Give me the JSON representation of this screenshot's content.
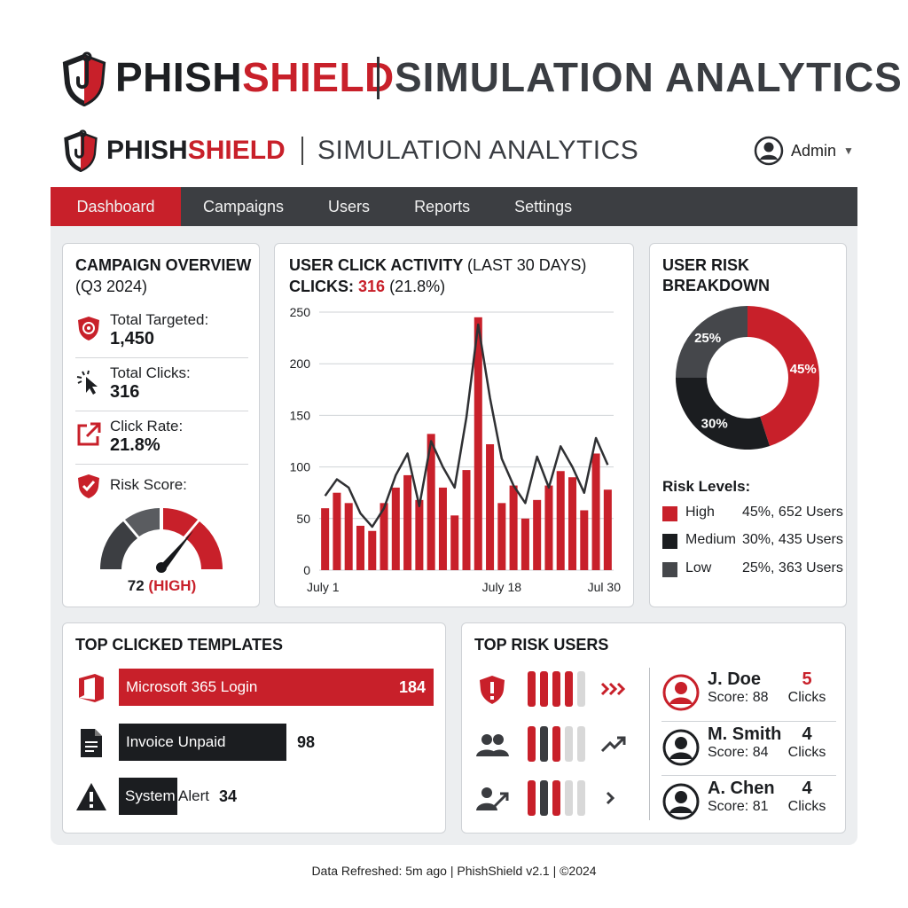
{
  "hero": {
    "brand_dark": "PHISH",
    "brand_red": "SHIELD",
    "title": "SIMULATION ANALYTICS"
  },
  "app_header": {
    "brand_dark": "PHISH",
    "brand_red": "SHIELD",
    "title": "SIMULATION ANALYTICS",
    "user_label": "Admin"
  },
  "nav": {
    "tabs": [
      {
        "label": "Dashboard",
        "active": true
      },
      {
        "label": "Campaigns",
        "active": false
      },
      {
        "label": "Users",
        "active": false
      },
      {
        "label": "Reports",
        "active": false
      },
      {
        "label": "Settings",
        "active": false
      }
    ]
  },
  "overview": {
    "title": "CAMPAIGN OVERVIEW",
    "subtitle": "(Q3 2024)",
    "metrics": [
      {
        "label": "Total Targeted:",
        "value": "1,450",
        "icon": "shield-target-icon"
      },
      {
        "label": "Total Clicks:",
        "value": "316",
        "icon": "cursor-click-icon"
      },
      {
        "label": "Click Rate:",
        "value": "21.8%",
        "icon": "external-link-icon"
      }
    ],
    "risk_label": "Risk Score:",
    "risk_value": "72",
    "risk_level": "(HIGH)",
    "risk_score": 72
  },
  "activity": {
    "title": "USER CLICK ACTIVITY",
    "title_suffix": "(LAST 30 DAYS)",
    "clicks_label": "CLICKS:",
    "clicks_value": "316",
    "clicks_pct": "(21.8%)"
  },
  "chart_data": {
    "type": "bar",
    "title": "USER CLICK ACTIVITY (LAST 30 DAYS)",
    "ylim": [
      0,
      250
    ],
    "yticks": [
      0,
      50,
      100,
      150,
      200,
      250
    ],
    "xtick_labels": [
      "July 1",
      "July 18",
      "Jul 30"
    ],
    "xtick_positions": [
      1,
      16,
      28
    ],
    "series": [
      {
        "values": [
          60,
          75,
          65,
          43,
          38,
          65,
          80,
          92,
          68,
          132,
          80,
          53,
          97,
          245,
          122,
          65,
          82,
          50,
          68,
          82,
          96,
          90,
          58,
          113,
          78
        ]
      },
      {
        "values": [
          72,
          88,
          80,
          55,
          42,
          60,
          92,
          113,
          62,
          125,
          100,
          80,
          148,
          238,
          167,
          108,
          82,
          65,
          110,
          80,
          120,
          100,
          75,
          128,
          102
        ]
      }
    ],
    "colors": {
      "bars": "#c8202a",
      "line": "#2f3033",
      "grid": "#cfd2d6"
    }
  },
  "risk_breakdown": {
    "title": "USER RISK BREAKDOWN",
    "legend_title": "Risk Levels:",
    "slices": [
      {
        "name": "High",
        "pct": 45,
        "label": "45%",
        "detail": "45%, 652 Users",
        "color": "#c8202a"
      },
      {
        "name": "Medium",
        "pct": 30,
        "label": "30%",
        "detail": "30%, 435 Users",
        "color": "#1b1d20"
      },
      {
        "name": "Low",
        "pct": 25,
        "label": "25%",
        "detail": "25%, 363 Users",
        "color": "#45474b"
      }
    ]
  },
  "templates": {
    "title": "TOP CLICKED TEMPLATES",
    "items": [
      {
        "name": "Microsoft 365 Login",
        "value": "184",
        "count": 184,
        "icon": "office-icon",
        "color": "#c8202a"
      },
      {
        "name": "Invoice Unpaid",
        "value": "98",
        "count": 98,
        "icon": "document-icon",
        "color": "#1b1d20"
      },
      {
        "name": "System",
        "name_rest": "Alert",
        "value": "34",
        "count": 34,
        "icon": "alert-triangle-icon",
        "color": "#1b1d20"
      }
    ]
  },
  "risk_users": {
    "title": "TOP RISK USERS",
    "rows": [
      {
        "icon": "shield-alert-icon",
        "segments": [
          "#c8202a",
          "#c8202a",
          "#c8202a",
          "#c8202a",
          "#d8d8d8"
        ],
        "trend": "fast-forward-icon"
      },
      {
        "icon": "users-group-icon",
        "segments": [
          "#c8202a",
          "#3a3c40",
          "#c8202a",
          "#d8d8d8",
          "#d8d8d8"
        ],
        "trend": "trend-up-icon"
      },
      {
        "icon": "user-trend-icon",
        "segments": [
          "#c8202a",
          "#3a3c40",
          "#c8202a",
          "#d8d8d8",
          "#d8d8d8"
        ],
        "trend": "chevron-right-icon"
      }
    ],
    "people": [
      {
        "name": "J. Doe",
        "score": "Score: 88",
        "clicks": "5",
        "clicks_label": "Clicks",
        "highlight": true
      },
      {
        "name": "M. Smith",
        "score": "Score: 84",
        "clicks": "4",
        "clicks_label": "Clicks",
        "highlight": false
      },
      {
        "name": "A. Chen",
        "score": "Score: 81",
        "clicks": "4",
        "clicks_label": "Clicks",
        "highlight": false
      }
    ]
  },
  "footer": {
    "text": "Data Refreshed: 5m ago | PhishShield v2.1 | ©2024"
  }
}
